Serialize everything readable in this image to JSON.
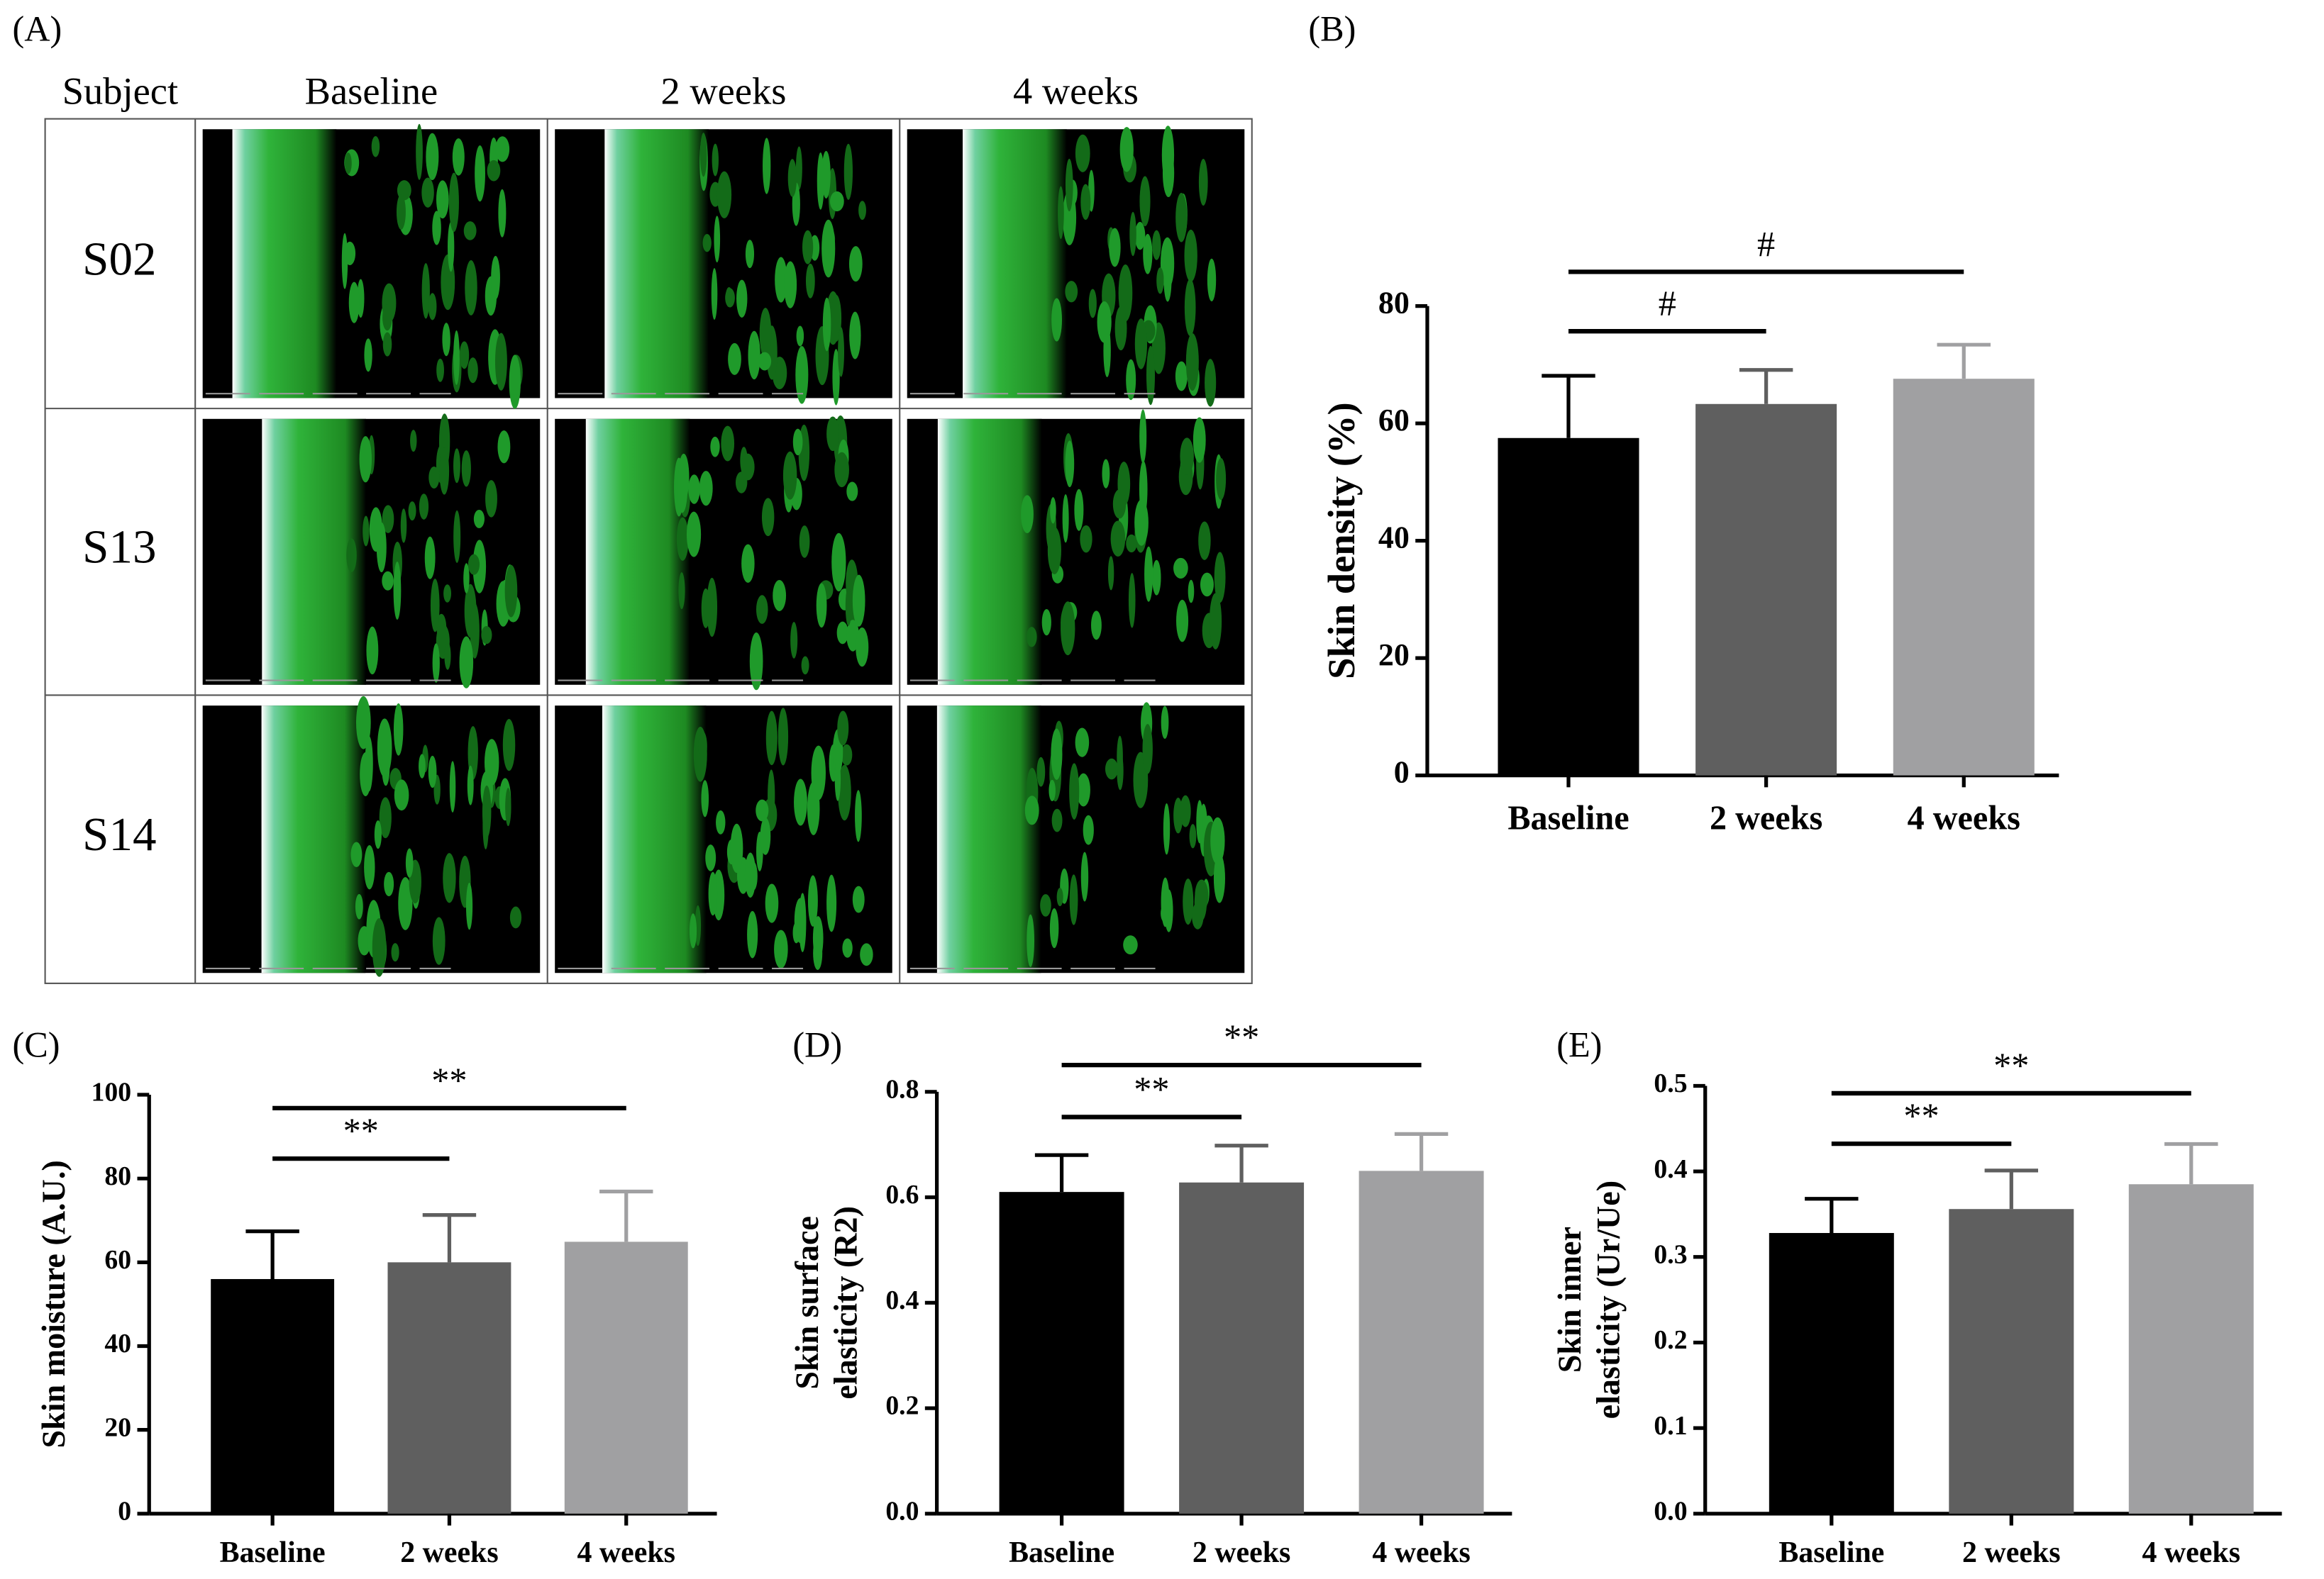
{
  "panel_a": {
    "label": "(A)",
    "header": [
      "Subject",
      "Baseline",
      "2 weeks",
      "4 weeks"
    ],
    "subjects": [
      "S02",
      "S13",
      "S14"
    ]
  },
  "chart_data": [
    {
      "type": "bar",
      "panel": "(B)",
      "ylabel": [
        "Skin density (%)"
      ],
      "categories": [
        "Baseline",
        "2 weeks",
        "4 weeks"
      ],
      "values": [
        57.5,
        63.3,
        67.6
      ],
      "errors": [
        10.6,
        5.8,
        5.8
      ],
      "colors": [
        "#000000",
        "#5f5f5f",
        "#a0a0a2"
      ],
      "ylim": [
        0,
        80
      ],
      "yticks": [
        0,
        20,
        40,
        60,
        80
      ],
      "comparisons": [
        {
          "label": "#",
          "from": 0,
          "to": 2
        },
        {
          "label": "#",
          "from": 0,
          "to": 1
        }
      ]
    },
    {
      "type": "bar",
      "panel": "(C)",
      "ylabel": [
        "Skin moisture (A.U.)"
      ],
      "categories": [
        "Baseline",
        "2 weeks",
        "4 weeks"
      ],
      "values": [
        56,
        60,
        64.9
      ],
      "errors": [
        11.4,
        11.3,
        12
      ],
      "colors": [
        "#000000",
        "#5f5f5f",
        "#a0a0a2"
      ],
      "ylim": [
        0,
        100
      ],
      "yticks": [
        0,
        20,
        40,
        60,
        80,
        100
      ],
      "comparisons": [
        {
          "label": "**",
          "from": 0,
          "to": 2
        },
        {
          "label": "**",
          "from": 0,
          "to": 1
        }
      ]
    },
    {
      "type": "bar",
      "panel": "(D)",
      "ylabel": [
        "Skin surface",
        "elasticity (R2)"
      ],
      "categories": [
        "Baseline",
        "2 weeks",
        "4 weeks"
      ],
      "values": [
        0.61,
        0.628,
        0.65
      ],
      "errors": [
        0.07,
        0.07,
        0.07
      ],
      "colors": [
        "#000000",
        "#5f5f5f",
        "#a0a0a2"
      ],
      "ylim": [
        0,
        0.8
      ],
      "yticks": [
        {
          "value": 0,
          "label": "0.0"
        },
        0.2,
        0.4,
        0.6,
        0.8
      ],
      "comparisons": [
        {
          "label": "**",
          "from": 0,
          "to": 2
        },
        {
          "label": "**",
          "from": 0,
          "to": 1
        }
      ]
    },
    {
      "type": "bar",
      "panel": "(E)",
      "ylabel": [
        "Skin inner",
        "elasticity (Ur/Ue)"
      ],
      "categories": [
        "Baseline",
        "2 weeks",
        "4 weeks"
      ],
      "values": [
        0.328,
        0.356,
        0.385
      ],
      "errors": [
        0.04,
        0.045,
        0.047
      ],
      "colors": [
        "#000000",
        "#5f5f5f",
        "#a0a0a2"
      ],
      "ylim": [
        0,
        0.5
      ],
      "yticks": [
        {
          "value": 0,
          "label": "0.0"
        },
        0.1,
        0.2,
        0.3,
        0.4,
        0.5
      ],
      "comparisons": [
        {
          "label": "**",
          "from": 0,
          "to": 2
        },
        {
          "label": "**",
          "from": 0,
          "to": 1
        }
      ]
    }
  ]
}
